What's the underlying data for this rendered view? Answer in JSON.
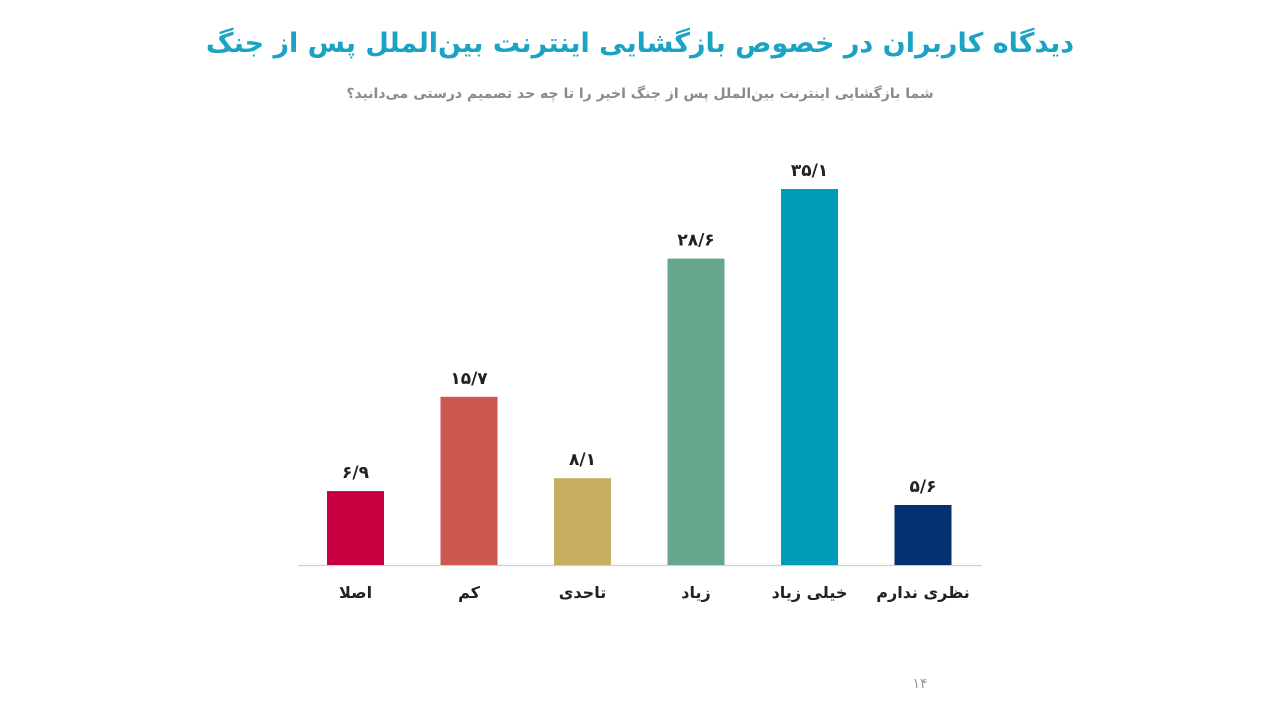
{
  "title": "دیدگاه کاربران در خصوص بازگشایی اینترنت بین‌الملل پس از جنگ",
  "subtitle": "شما بازگشایی اینترنت بین‌الملل پس از جنگ اخیر را تا چه حد تصمیم درستی می‌دانید؟",
  "page_number": "۱۴",
  "chart_data": {
    "type": "bar",
    "title": "دیدگاه کاربران در خصوص بازگشایی اینترنت بین‌الملل پس از جنگ",
    "subtitle": "شما بازگشایی اینترنت بین‌الملل پس از جنگ اخیر را تا چه حد تصمیم درستی می‌دانید؟",
    "categories": [
      "اصلا",
      "کم",
      "تاحدی",
      "زیاد",
      "خیلی زیاد",
      "نظری ندارم"
    ],
    "values": [
      6.9,
      15.7,
      8.1,
      28.6,
      35.1,
      5.6
    ],
    "value_labels": [
      "۶/۹",
      "۱۵/۷",
      "۸/۱",
      "۲۸/۶",
      "۳۵/۱",
      "۵/۶"
    ],
    "colors": [
      "#c8003f",
      "#cd5852",
      "#c6ae62",
      "#65a68c",
      "#009bb8",
      "#023070"
    ],
    "ylim": [
      0,
      35.1
    ],
    "xlabel": "",
    "ylabel": "",
    "grid": false,
    "legend": "none"
  }
}
